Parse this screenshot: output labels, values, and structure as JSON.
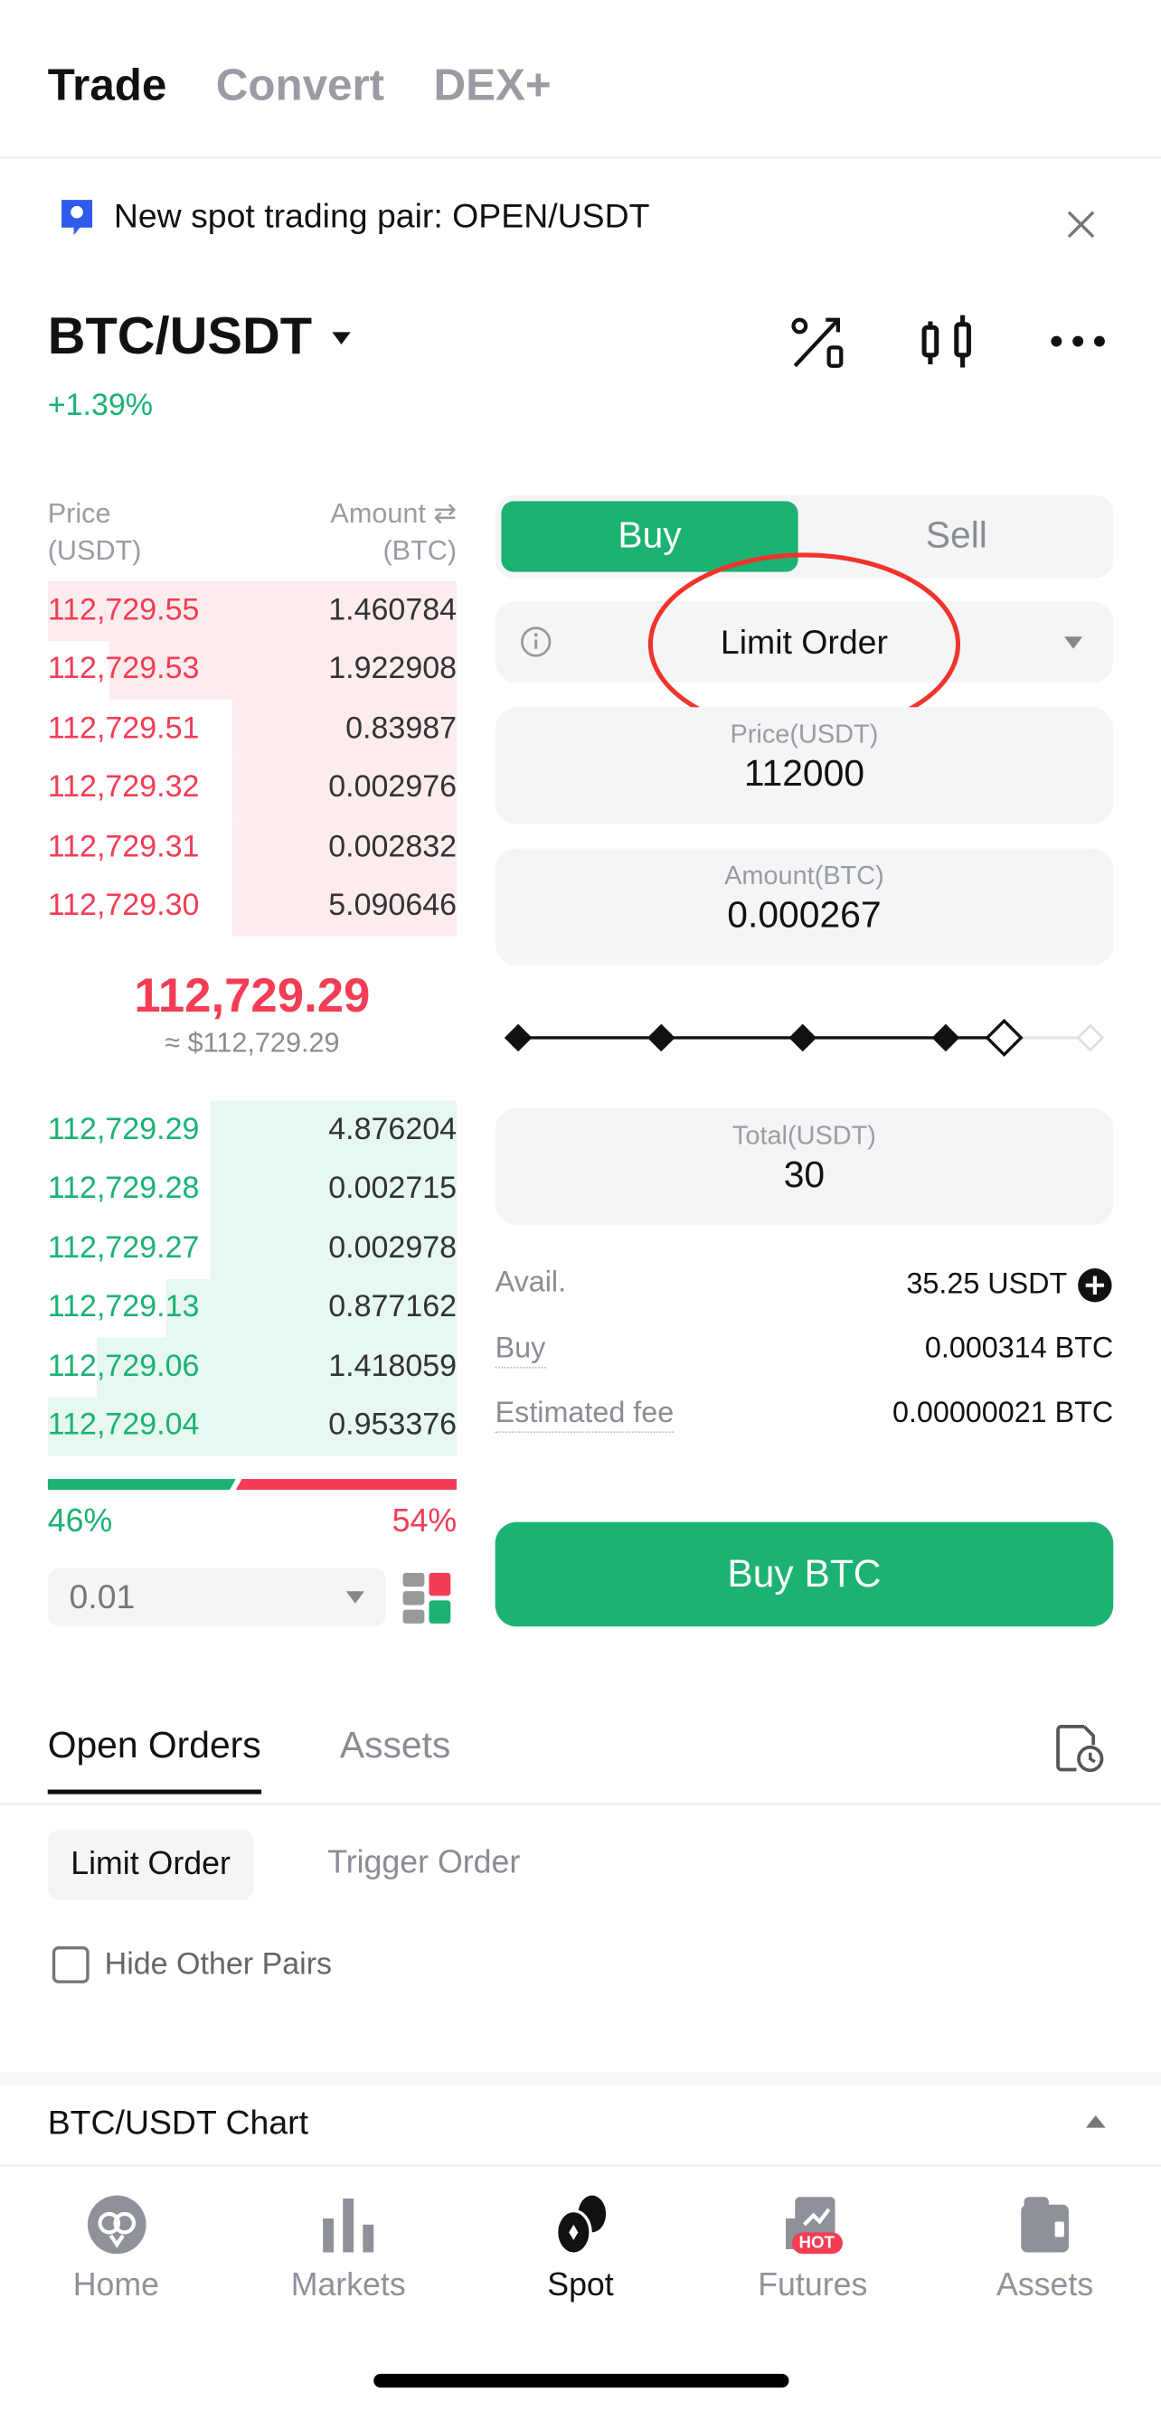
{
  "top_tabs": [
    {
      "label": "Trade",
      "active": true
    },
    {
      "label": "Convert",
      "active": false
    },
    {
      "label": "DEX+",
      "active": false
    }
  ],
  "banner": {
    "text": "New spot trading pair: OPEN/USDT",
    "icon": "announcement-icon"
  },
  "pair": {
    "name": "BTC/USDT",
    "change": "+1.39%"
  },
  "header_icons": [
    "percent-chart-icon",
    "candlestick-icon",
    "more-icon"
  ],
  "orderbook": {
    "price_header": "Price\n(USDT)",
    "amount_header": "Amount ⇄\n(BTC)",
    "price_header_l1": "Price",
    "price_header_l2": "(USDT)",
    "amount_header_l1": "Amount ⇄",
    "amount_header_l2": "(BTC)",
    "asks": [
      {
        "price": "112,729.55",
        "amount": "1.460784",
        "depth": 1.0
      },
      {
        "price": "112,729.53",
        "amount": "1.922908",
        "depth": 0.85
      },
      {
        "price": "112,729.51",
        "amount": "0.83987",
        "depth": 0.55
      },
      {
        "price": "112,729.32",
        "amount": "0.002976",
        "depth": 0.55
      },
      {
        "price": "112,729.31",
        "amount": "0.002832",
        "depth": 0.55
      },
      {
        "price": "112,729.30",
        "amount": "5.090646",
        "depth": 0.55
      }
    ],
    "last_price": "112,729.29",
    "last_price_usd": "≈ $112,729.29",
    "bids": [
      {
        "price": "112,729.29",
        "amount": "4.876204",
        "depth": 0.6
      },
      {
        "price": "112,729.28",
        "amount": "0.002715",
        "depth": 0.6
      },
      {
        "price": "112,729.27",
        "amount": "0.002978",
        "depth": 0.6
      },
      {
        "price": "112,729.13",
        "amount": "0.877162",
        "depth": 0.71
      },
      {
        "price": "112,729.06",
        "amount": "1.418059",
        "depth": 0.88
      },
      {
        "price": "112,729.04",
        "amount": "0.953376",
        "depth": 1.0
      }
    ],
    "buy_ratio": "46%",
    "sell_ratio": "54%",
    "buy_ratio_value": 46,
    "precision": "0.01"
  },
  "colors": {
    "green": "#1bb273",
    "red": "#f23d55",
    "ask_bg": "#fdecee",
    "bid_bg": "#e6f8f0"
  },
  "form": {
    "buy_tab": "Buy",
    "sell_tab": "Sell",
    "order_type": "Limit Order",
    "price_label": "Price(USDT)",
    "price_value": "112000",
    "amount_label": "Amount(BTC)",
    "amount_value": "0.000267",
    "slider_percent": 85,
    "total_label": "Total(USDT)",
    "total_value": "30",
    "avail_label": "Avail.",
    "avail_value": "35.25 USDT",
    "buy_label": "Buy",
    "buy_value": "0.000314 BTC",
    "fee_label": "Estimated fee",
    "fee_value": "0.00000021 BTC",
    "submit": "Buy BTC"
  },
  "orders": {
    "tabs": [
      {
        "label": "Open Orders",
        "active": true
      },
      {
        "label": "Assets",
        "active": false
      }
    ],
    "subtabs": [
      {
        "label": "Limit Order",
        "active": true
      },
      {
        "label": "Trigger Order",
        "active": false
      }
    ],
    "hide_other": "Hide Other Pairs"
  },
  "chart_section": "BTC/USDT Chart",
  "bottom_nav": [
    {
      "label": "Home"
    },
    {
      "label": "Markets"
    },
    {
      "label": "Spot",
      "active": true
    },
    {
      "label": "Futures",
      "badge": "HOT"
    },
    {
      "label": "Assets"
    }
  ]
}
